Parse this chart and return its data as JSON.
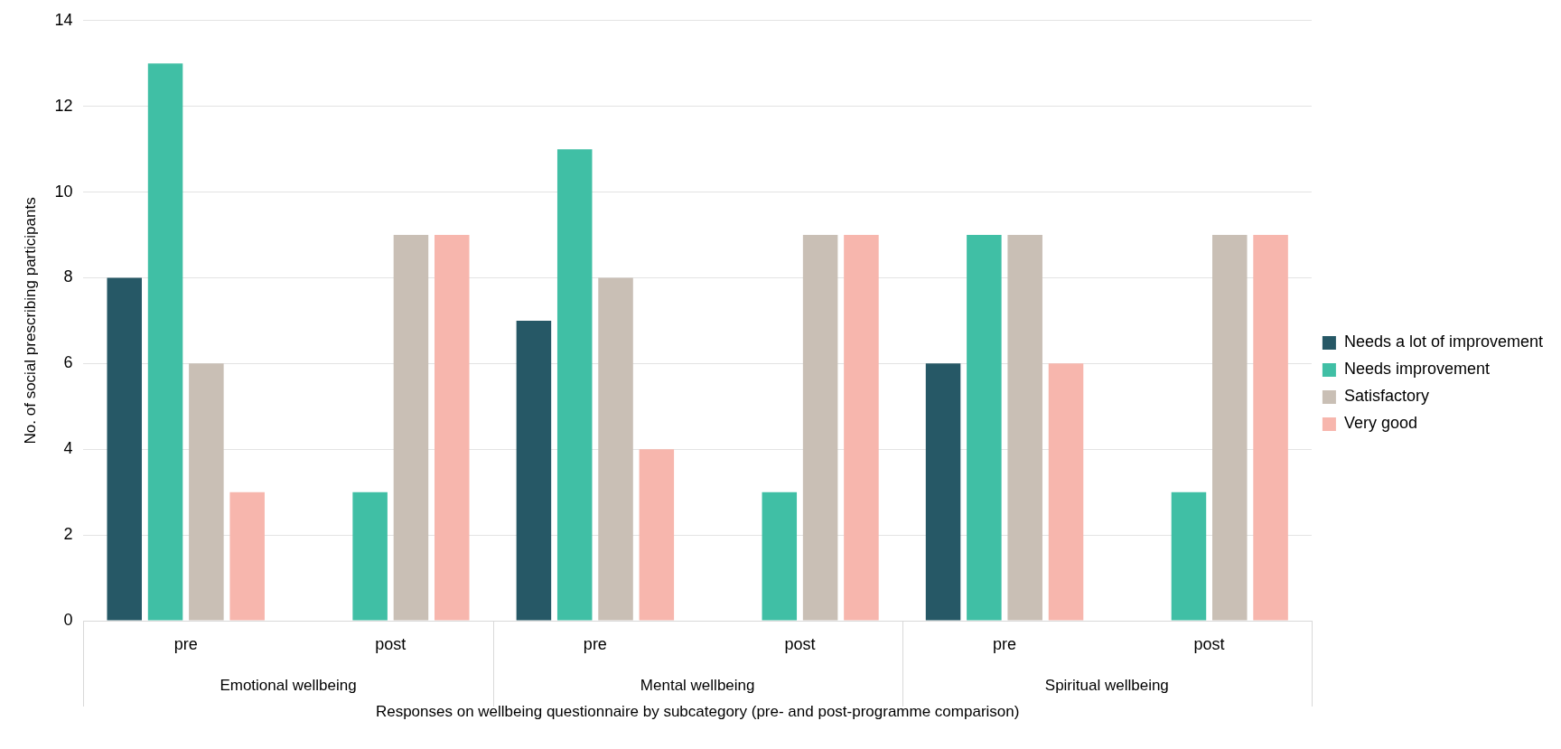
{
  "chart_data": {
    "type": "bar",
    "xlabel": "Responses on wellbeing questionnaire by subcategory (pre- and post-programme comparison)",
    "ylabel": "No. of social prescribing participants",
    "categories": [
      "pre",
      "post",
      "pre",
      "post",
      "pre",
      "post"
    ],
    "annotations": [
      "Emotional wellbeing",
      "Mental wellbeing",
      "Spiritual wellbeing"
    ],
    "series": [
      {
        "name": "Needs a lot of improvement",
        "color": "#265866",
        "values": [
          8,
          0,
          7,
          0,
          6,
          0
        ]
      },
      {
        "name": "Needs improvement",
        "color": "#40bfa5",
        "values": [
          13,
          3,
          11,
          3,
          9,
          3
        ]
      },
      {
        "name": "Satisfactory",
        "color": "#c9bfb5",
        "values": [
          6,
          9,
          8,
          9,
          9,
          9
        ]
      },
      {
        "name": "Very good",
        "color": "#f7b6ad",
        "values": [
          3,
          9,
          4,
          9,
          6,
          9
        ]
      }
    ],
    "ylim": [
      0,
      14
    ],
    "yticks": [
      0,
      2,
      4,
      6,
      8,
      10,
      12,
      14
    ],
    "grid": "y",
    "legend": "right"
  }
}
